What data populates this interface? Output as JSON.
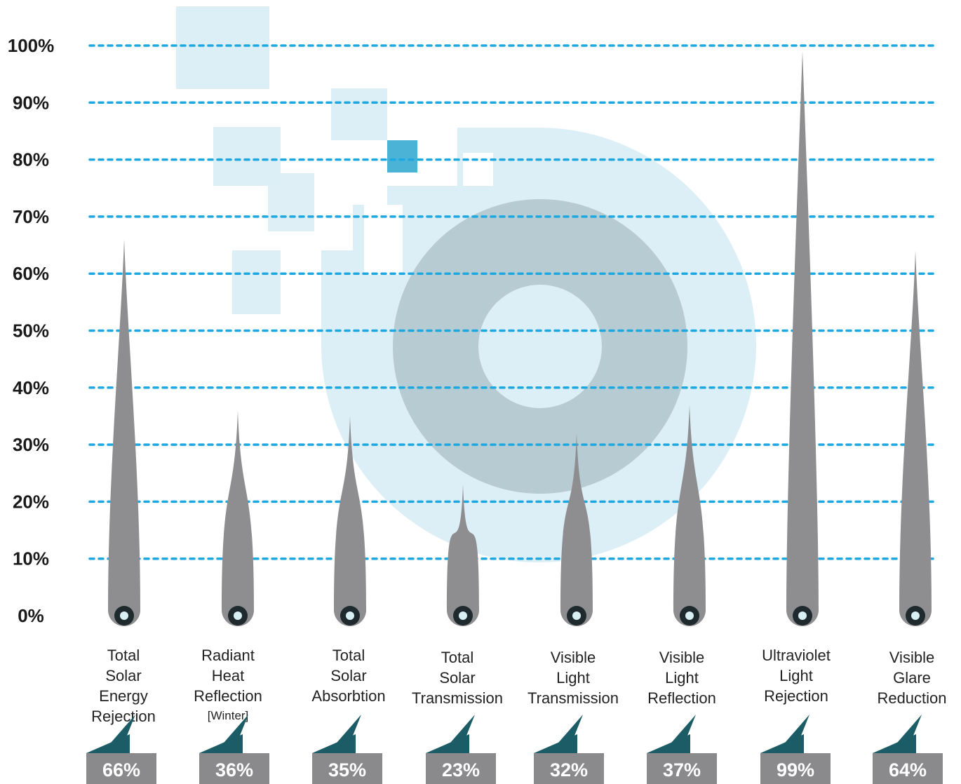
{
  "colors": {
    "grid": "#1ea8e0",
    "needle": "#8e8e90",
    "hub": "#1e2a2e",
    "hub_center": "#d8f0f4",
    "label_box": "#8a8a8c",
    "flag": "#1b5c66",
    "watermark_light": "#dceef6",
    "watermark_ring": "#b7cbd2",
    "watermark_accent": "#4bb3d6"
  },
  "icons": [
    "watermark-logo",
    "needle-marker",
    "flag-marker"
  ],
  "chart_data": {
    "type": "bar",
    "title": "",
    "xlabel": "",
    "ylabel": "",
    "ylim": [
      0,
      100
    ],
    "grid": true,
    "y_ticks": [
      "0%",
      "10%",
      "20%",
      "30%",
      "40%",
      "50%",
      "60%",
      "70%",
      "80%",
      "90%",
      "100%"
    ],
    "categories": [
      {
        "lines": [
          "Total",
          "Solar",
          "Energy",
          "Rejection"
        ],
        "note": ""
      },
      {
        "lines": [
          "Radiant",
          "Heat",
          "Reflection"
        ],
        "note": "[Winter]"
      },
      {
        "lines": [
          "Total",
          "Solar",
          "Absorbtion"
        ],
        "note": ""
      },
      {
        "lines": [
          "Total",
          "Solar",
          "Transmission"
        ],
        "note": ""
      },
      {
        "lines": [
          "Visible",
          "Light",
          "Transmission"
        ],
        "note": ""
      },
      {
        "lines": [
          "Visible",
          "Light",
          "Reflection"
        ],
        "note": ""
      },
      {
        "lines": [
          "Ultraviolet",
          "Light",
          "Rejection"
        ],
        "note": ""
      },
      {
        "lines": [
          "Visible",
          "Glare",
          "Reduction"
        ],
        "note": ""
      }
    ],
    "values": [
      66,
      36,
      35,
      23,
      32,
      37,
      99,
      64
    ],
    "value_labels": [
      "66%",
      "36%",
      "35%",
      "23%",
      "32%",
      "37%",
      "99%",
      "64%"
    ]
  }
}
